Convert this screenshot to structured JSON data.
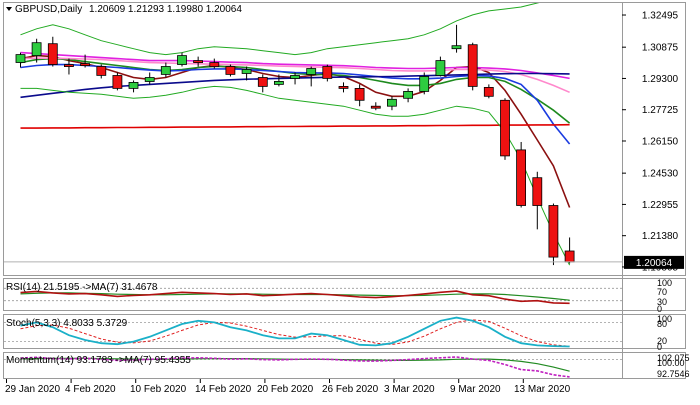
{
  "header": {
    "symbol": "GBPUSD,Daily",
    "ohlc": "1.20609 1.21293 1.19980 1.20064"
  },
  "price_axis": {
    "ticks": [
      "1.32495",
      "1.30875",
      "1.29300",
      "1.27725",
      "1.26150",
      "1.24530",
      "1.22955",
      "1.21380",
      "1.19805"
    ],
    "current_price": "1.20064"
  },
  "date_axis": {
    "labels": [
      "29 Jan 2020",
      "4 Feb 2020",
      "10 Feb 2020",
      "14 Feb 2020",
      "20 Feb 2020",
      "26 Feb 2020",
      "3 Mar 2020",
      "9 Mar 2020",
      "13 Mar 2020"
    ]
  },
  "rsi_panel": {
    "label": "RSI(14) 21.5195  ->MA(7) 31.4678",
    "ticks": [
      "100",
      "70",
      "30",
      "0"
    ]
  },
  "stoch_panel": {
    "label": "Stoch(5,3,3) 4.8033 5.3729",
    "ticks": [
      "100",
      "80",
      "20",
      "0"
    ]
  },
  "momentum_panel": {
    "label": "Momentum(14) 93.1783  ->MA(7) 95.4355",
    "ticks": [
      "102.075",
      "100.00",
      "92.7546"
    ]
  },
  "colors": {
    "bull": "#2ecc40",
    "bear": "#ee1111",
    "ma_brown": "#8b1010",
    "ma_green": "#1e8a1e",
    "ma_blue": "#1a3be0",
    "ma_magenta": "#e020e0",
    "ma_pink": "#ff88cc",
    "ma_navy": "#0a0a8c",
    "ma_red_flat": "#e00000",
    "bollinger": "#22aa22",
    "rsi_line": "#b01010",
    "rsi_ma": "#228b22",
    "stoch_main": "#1ab0c8",
    "stoch_signal": "#e02020",
    "mom_line": "#c020c0",
    "mom_ma": "#228b22"
  },
  "chart_data": {
    "type": "candlestick",
    "title": "GBPUSD,Daily",
    "ylim": [
      1.1945,
      1.3305
    ],
    "candles": [
      {
        "open": 1.301,
        "high": 1.306,
        "low": 1.2985,
        "close": 1.305
      },
      {
        "open": 1.3045,
        "high": 1.313,
        "low": 1.301,
        "close": 1.311
      },
      {
        "open": 1.3105,
        "high": 1.314,
        "low": 1.299,
        "close": 1.3
      },
      {
        "open": 1.3,
        "high": 1.303,
        "low": 1.295,
        "close": 1.299
      },
      {
        "open": 1.3005,
        "high": 1.305,
        "low": 1.2985,
        "close": 1.2995
      },
      {
        "open": 1.299,
        "high": 1.3,
        "low": 1.293,
        "close": 1.2945
      },
      {
        "open": 1.2945,
        "high": 1.296,
        "low": 1.287,
        "close": 1.288
      },
      {
        "open": 1.288,
        "high": 1.292,
        "low": 1.286,
        "close": 1.291
      },
      {
        "open": 1.2915,
        "high": 1.296,
        "low": 1.29,
        "close": 1.2935
      },
      {
        "open": 1.295,
        "high": 1.301,
        "low": 1.2935,
        "close": 1.299
      },
      {
        "open": 1.3,
        "high": 1.306,
        "low": 1.299,
        "close": 1.3045
      },
      {
        "open": 1.302,
        "high": 1.304,
        "low": 1.299,
        "close": 1.301
      },
      {
        "open": 1.301,
        "high": 1.303,
        "low": 1.298,
        "close": 1.299
      },
      {
        "open": 1.299,
        "high": 1.3,
        "low": 1.294,
        "close": 1.295
      },
      {
        "open": 1.2955,
        "high": 1.299,
        "low": 1.292,
        "close": 1.2975
      },
      {
        "open": 1.2935,
        "high": 1.295,
        "low": 1.286,
        "close": 1.289
      },
      {
        "open": 1.29,
        "high": 1.295,
        "low": 1.289,
        "close": 1.2915
      },
      {
        "open": 1.293,
        "high": 1.296,
        "low": 1.29,
        "close": 1.2945
      },
      {
        "open": 1.295,
        "high": 1.299,
        "low": 1.289,
        "close": 1.298
      },
      {
        "open": 1.299,
        "high": 1.3,
        "low": 1.2915,
        "close": 1.293
      },
      {
        "open": 1.289,
        "high": 1.291,
        "low": 1.286,
        "close": 1.288
      },
      {
        "open": 1.288,
        "high": 1.29,
        "low": 1.279,
        "close": 1.282
      },
      {
        "open": 1.279,
        "high": 1.281,
        "low": 1.277,
        "close": 1.278
      },
      {
        "open": 1.279,
        "high": 1.284,
        "low": 1.277,
        "close": 1.2825
      },
      {
        "open": 1.283,
        "high": 1.288,
        "low": 1.281,
        "close": 1.2865
      },
      {
        "open": 1.2865,
        "high": 1.296,
        "low": 1.285,
        "close": 1.294
      },
      {
        "open": 1.2945,
        "high": 1.304,
        "low": 1.294,
        "close": 1.302
      },
      {
        "open": 1.308,
        "high": 1.32,
        "low": 1.306,
        "close": 1.3095
      },
      {
        "open": 1.31,
        "high": 1.311,
        "low": 1.287,
        "close": 1.289
      },
      {
        "open": 1.2885,
        "high": 1.29,
        "low": 1.283,
        "close": 1.284
      },
      {
        "open": 1.282,
        "high": 1.283,
        "low": 1.252,
        "close": 1.254
      },
      {
        "open": 1.257,
        "high": 1.261,
        "low": 1.228,
        "close": 1.229
      },
      {
        "open": 1.243,
        "high": 1.246,
        "low": 1.217,
        "close": 1.229
      },
      {
        "open": 1.229,
        "high": 1.23,
        "low": 1.199,
        "close": 1.203
      },
      {
        "open": 1.2061,
        "high": 1.2129,
        "low": 1.1998,
        "close": 1.2006
      }
    ],
    "moving_averages": [
      {
        "color_key": "ma_brown",
        "values": [
          1.303,
          1.3045,
          1.304,
          1.302,
          1.3005,
          1.2985,
          1.296,
          1.2935,
          1.2925,
          1.2935,
          1.296,
          1.2985,
          1.2995,
          1.2985,
          1.2975,
          1.2955,
          1.294,
          1.2935,
          1.2945,
          1.2955,
          1.294,
          1.2905,
          1.286,
          1.284,
          1.284,
          1.2865,
          1.292,
          1.2985,
          1.299,
          1.296,
          1.287,
          1.275,
          1.262,
          1.249,
          1.228
        ]
      },
      {
        "color_key": "ma_green",
        "values": [
          1.301,
          1.3025,
          1.303,
          1.3025,
          1.3015,
          1.3005,
          1.2995,
          1.2985,
          1.2975,
          1.297,
          1.2975,
          1.2985,
          1.299,
          1.299,
          1.2985,
          1.2975,
          1.2965,
          1.2955,
          1.295,
          1.295,
          1.2945,
          1.2935,
          1.292,
          1.2905,
          1.2895,
          1.2895,
          1.2905,
          1.2925,
          1.2935,
          1.2935,
          1.2915,
          1.2875,
          1.2825,
          1.277,
          1.2705
        ]
      },
      {
        "color_key": "ma_blue",
        "values": [
          1.2985,
          1.2995,
          1.3,
          1.3,
          1.2995,
          1.299,
          1.2985,
          1.2978,
          1.2972,
          1.2968,
          1.297,
          1.2975,
          1.2978,
          1.2978,
          1.2975,
          1.297,
          1.2965,
          1.296,
          1.2958,
          1.2958,
          1.2955,
          1.2948,
          1.294,
          1.2932,
          1.2928,
          1.2928,
          1.2932,
          1.294,
          1.2945,
          1.2943,
          1.293,
          1.29,
          1.282,
          1.27,
          1.26
        ]
      },
      {
        "color_key": "ma_magenta",
        "values": [
          1.306,
          1.3055,
          1.305,
          1.3045,
          1.304,
          1.3035,
          1.303,
          1.3025,
          1.302,
          1.302,
          1.302,
          1.3018,
          1.3015,
          1.3012,
          1.301,
          1.3005,
          1.3002,
          1.3,
          1.2998,
          1.2996,
          1.2994,
          1.299,
          1.2985,
          1.2982,
          1.298,
          1.298,
          1.2982,
          1.2985,
          1.2985,
          1.2982,
          1.2978,
          1.297,
          1.2958,
          1.2945,
          1.293
        ]
      },
      {
        "color_key": "ma_pink",
        "values": [
          1.303,
          1.3032,
          1.3032,
          1.303,
          1.3028,
          1.3025,
          1.302,
          1.3015,
          1.301,
          1.3008,
          1.3006,
          1.3004,
          1.3002,
          1.3,
          1.2998,
          1.2995,
          1.2992,
          1.299,
          1.2988,
          1.2986,
          1.2984,
          1.298,
          1.2975,
          1.297,
          1.2968,
          1.2968,
          1.297,
          1.2975,
          1.2975,
          1.2972,
          1.2965,
          1.295,
          1.2925,
          1.2895,
          1.286
        ]
      },
      {
        "color_key": "ma_navy",
        "values": [
          1.2835,
          1.2845,
          1.2855,
          1.2865,
          1.2875,
          1.2883,
          1.289,
          1.2895,
          1.29,
          1.2905,
          1.291,
          1.2915,
          1.292,
          1.2923,
          1.2926,
          1.2928,
          1.293,
          1.2932,
          1.2934,
          1.2936,
          1.2937,
          1.2938,
          1.2939,
          1.294,
          1.2942,
          1.2944,
          1.2946,
          1.2948,
          1.295,
          1.2952,
          1.2954,
          1.2955,
          1.2955,
          1.2954,
          1.2953
        ]
      },
      {
        "color_key": "ma_red_flat",
        "values": [
          1.268,
          1.268,
          1.2681,
          1.2681,
          1.2682,
          1.2682,
          1.2683,
          1.2683,
          1.2684,
          1.2684,
          1.2685,
          1.2685,
          1.2686,
          1.2686,
          1.2687,
          1.2687,
          1.2688,
          1.2688,
          1.2689,
          1.2689,
          1.269,
          1.269,
          1.2691,
          1.2691,
          1.2692,
          1.2692,
          1.2693,
          1.2693,
          1.2694,
          1.2694,
          1.2695,
          1.2695,
          1.2696,
          1.2696,
          1.2697
        ]
      },
      {
        "color_key": "bollinger",
        "values": [
          1.315,
          1.318,
          1.32,
          1.318,
          1.315,
          1.312,
          1.31,
          1.308,
          1.306,
          1.305,
          1.306,
          1.308,
          1.309,
          1.3085,
          1.308,
          1.307,
          1.306,
          1.305,
          1.306,
          1.308,
          1.309,
          1.31,
          1.311,
          1.312,
          1.313,
          1.315,
          1.318,
          1.322,
          1.325,
          1.327,
          1.328,
          1.329,
          1.331,
          1.333,
          1.336
        ]
      },
      {
        "color_key": "bollinger",
        "values": [
          1.288,
          1.288,
          1.287,
          1.286,
          1.2855,
          1.285,
          1.284,
          1.283,
          1.2835,
          1.2845,
          1.286,
          1.288,
          1.289,
          1.2885,
          1.287,
          1.285,
          1.283,
          1.282,
          1.281,
          1.28,
          1.279,
          1.277,
          1.275,
          1.274,
          1.274,
          1.275,
          1.277,
          1.279,
          1.278,
          1.276,
          1.266,
          1.252,
          1.233,
          1.215,
          1.199
        ]
      }
    ],
    "rsi": {
      "line": [
        56,
        60,
        55,
        52,
        53,
        49,
        44,
        47,
        49,
        53,
        57,
        55,
        53,
        50,
        52,
        46,
        48,
        51,
        53,
        50,
        46,
        42,
        40,
        43,
        47,
        52,
        57,
        61,
        49,
        46,
        35,
        28,
        30,
        23,
        21.5
      ],
      "ma": [
        52,
        54,
        55,
        55,
        54,
        53,
        51,
        50,
        49,
        49,
        50,
        51,
        52,
        52,
        52,
        51,
        50,
        50,
        50,
        50,
        49,
        48,
        47,
        46,
        46,
        47,
        49,
        51,
        52,
        52,
        50,
        46,
        42,
        37,
        31.5
      ]
    },
    "stoch": {
      "main": [
        70,
        80,
        65,
        40,
        25,
        15,
        12,
        20,
        35,
        55,
        75,
        85,
        80,
        65,
        55,
        40,
        30,
        30,
        45,
        40,
        25,
        10,
        8,
        15,
        35,
        60,
        85,
        95,
        85,
        65,
        35,
        15,
        8,
        6,
        4.8
      ],
      "signal": [
        60,
        70,
        72,
        62,
        45,
        28,
        18,
        16,
        22,
        37,
        55,
        72,
        80,
        78,
        68,
        55,
        42,
        34,
        35,
        38,
        38,
        27,
        15,
        11,
        19,
        37,
        60,
        80,
        88,
        83,
        62,
        38,
        20,
        10,
        5.4
      ]
    },
    "momentum": {
      "line": [
        100.5,
        100.8,
        100.3,
        100.2,
        100.4,
        100.0,
        99.6,
        99.8,
        100.0,
        100.2,
        100.5,
        100.6,
        100.4,
        100.1,
        100.2,
        99.9,
        99.8,
        100.0,
        100.1,
        100.0,
        99.7,
        99.4,
        99.3,
        99.6,
        99.9,
        100.3,
        100.6,
        100.9,
        100.1,
        99.6,
        98.0,
        96.0,
        95.5,
        94.0,
        93.2
      ],
      "ma": [
        100.2,
        100.3,
        100.4,
        100.4,
        100.4,
        100.3,
        100.2,
        100.1,
        100.0,
        100.0,
        100.1,
        100.2,
        100.3,
        100.3,
        100.3,
        100.2,
        100.1,
        100.0,
        100.0,
        100.0,
        99.9,
        99.8,
        99.7,
        99.6,
        99.6,
        99.7,
        99.8,
        100.0,
        100.1,
        100.1,
        99.8,
        99.2,
        98.3,
        97.0,
        95.4
      ]
    }
  }
}
